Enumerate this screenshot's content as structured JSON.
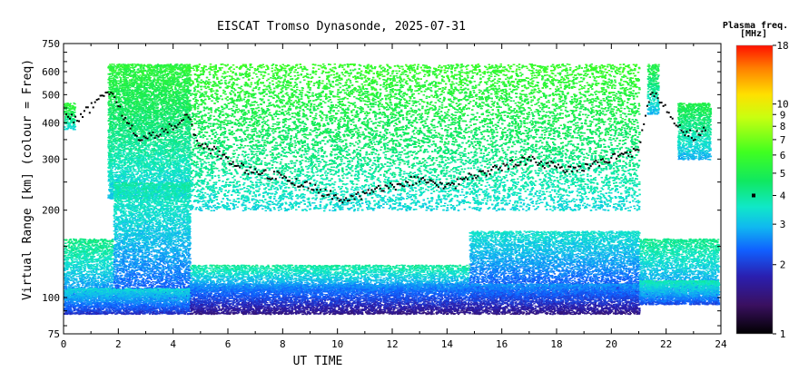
{
  "chart_data": {
    "type": "heatmap",
    "title": "EISCAT Tromso Dynasonde, 2025-07-31",
    "xlabel": "UT TIME",
    "ylabel": "Virtual Range [km] (colour = Freq)",
    "x_ticks": [
      0,
      2,
      4,
      6,
      8,
      10,
      12,
      14,
      16,
      18,
      20,
      22,
      24
    ],
    "xlim": [
      0,
      24
    ],
    "y_scale": "log",
    "y_ticks": [
      75,
      100,
      200,
      300,
      400,
      500,
      600,
      750
    ],
    "ylim": [
      75,
      750
    ],
    "grid": false,
    "colorbar": {
      "title": "Plasma freq.",
      "unit": "[MHz]",
      "scale": "log",
      "ticks": [
        1,
        2,
        3,
        4,
        5,
        6,
        7,
        8,
        9,
        10,
        18
      ],
      "range": [
        1,
        18
      ],
      "colors": [
        "#000000",
        "#3a1060",
        "#2a1fb0",
        "#1060ff",
        "#10b8f0",
        "#10e8c8",
        "#10e860",
        "#40ff20",
        "#c8ff10",
        "#ffe000",
        "#ff8000",
        "#ff1000"
      ],
      "f2_marker_freq": 4
    },
    "layers": {
      "E_region": [
        {
          "t0": 0.0,
          "t1": 4.6,
          "h0": 88,
          "h1": 108,
          "f": 2.6
        },
        {
          "t0": 4.6,
          "t1": 21.0,
          "h0": 88,
          "h1": 112,
          "f": 2.1
        },
        {
          "t0": 21.0,
          "t1": 23.9,
          "h0": 95,
          "h1": 115,
          "f": 2.9
        }
      ],
      "Es_region": [
        {
          "t0": 0.0,
          "t1": 1.8,
          "h0": 100,
          "h1": 160,
          "f": 3.3
        },
        {
          "t0": 1.8,
          "t1": 4.6,
          "h0": 100,
          "h1": 250,
          "f": 3.0
        },
        {
          "t0": 4.6,
          "t1": 14.8,
          "h0": 105,
          "h1": 130,
          "f": 3.1
        },
        {
          "t0": 14.8,
          "t1": 21.0,
          "h0": 100,
          "h1": 170,
          "f": 2.7
        },
        {
          "t0": 21.0,
          "t1": 23.9,
          "h0": 100,
          "h1": 160,
          "f": 3.2
        }
      ],
      "F_region": [
        {
          "t0": 0.0,
          "t1": 0.4,
          "h0": 380,
          "h1": 470,
          "f": 4.4
        },
        {
          "t0": 1.6,
          "t1": 4.6,
          "h0": 220,
          "h1": 640,
          "f": 4.2
        },
        {
          "t0": 4.6,
          "t1": 21.0,
          "h0": 200,
          "h1": 640,
          "f": 4.5
        },
        {
          "t0": 21.3,
          "t1": 21.7,
          "h0": 430,
          "h1": 640,
          "f": 4.0
        },
        {
          "t0": 22.4,
          "t1": 23.6,
          "h0": 300,
          "h1": 470,
          "f": 3.9
        }
      ]
    },
    "f2_trace": {
      "t": [
        0.1,
        0.5,
        1.8,
        2.2,
        2.5,
        2.8,
        3.2,
        3.6,
        4.0,
        4.5,
        5.0,
        5.5,
        6.0,
        6.5,
        7.0,
        7.5,
        8.0,
        8.5,
        9.0,
        9.5,
        10.0,
        10.5,
        11.0,
        11.5,
        12.0,
        12.5,
        13.0,
        13.5,
        14.0,
        14.5,
        15.0,
        15.5,
        16.0,
        16.5,
        17.0,
        17.5,
        18.0,
        18.5,
        19.0,
        19.5,
        20.0,
        20.5,
        21.0,
        21.5,
        22.5,
        23.0,
        23.5
      ],
      "h": [
        420,
        410,
        520,
        410,
        380,
        340,
        360,
        370,
        390,
        420,
        330,
        320,
        300,
        280,
        270,
        265,
        260,
        250,
        240,
        230,
        220,
        220,
        225,
        235,
        240,
        250,
        255,
        245,
        240,
        250,
        265,
        270,
        280,
        290,
        300,
        290,
        280,
        275,
        280,
        290,
        300,
        310,
        320,
        520,
        380,
        360,
        380
      ]
    }
  }
}
